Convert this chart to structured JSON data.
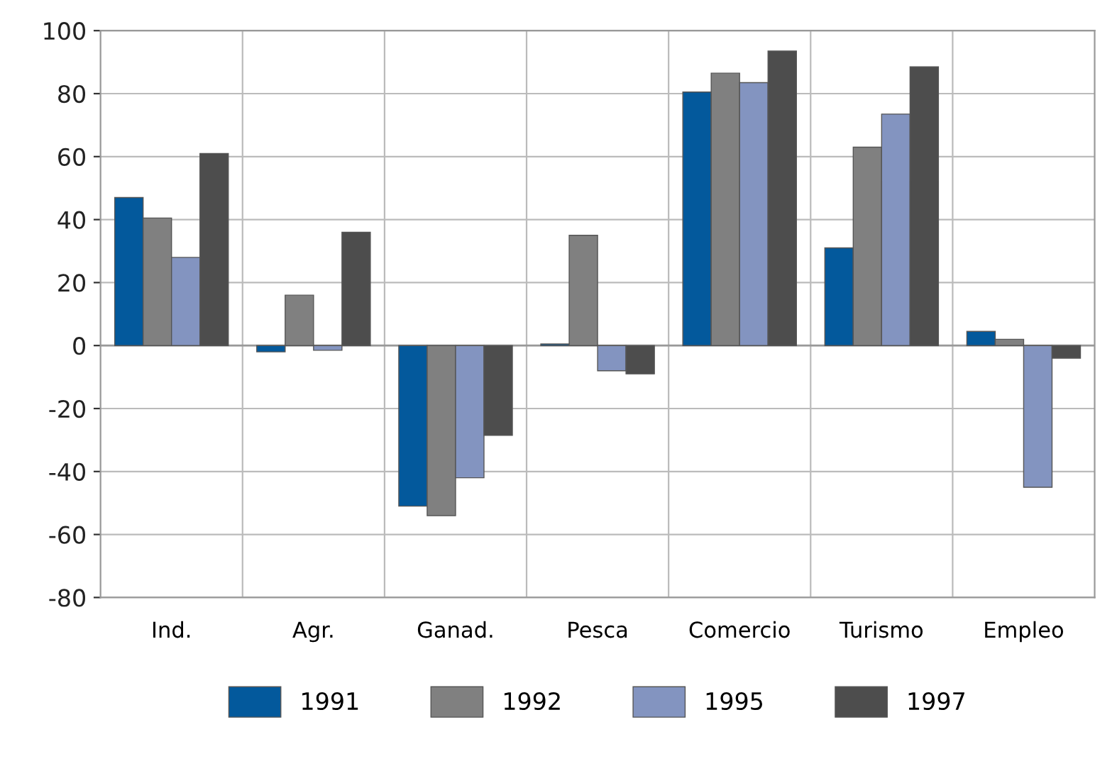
{
  "chart_data": {
    "type": "bar",
    "categories": [
      "Ind.",
      "Agr.",
      "Ganad.",
      "Pesca",
      "Comercio",
      "Turismo",
      "Empleo"
    ],
    "series": [
      {
        "name": "1991",
        "color": "#03599c",
        "values": [
          47,
          -2,
          -51,
          0.5,
          80.5,
          31,
          4.5
        ]
      },
      {
        "name": "1992",
        "color": "#808080",
        "values": [
          40.5,
          16,
          -54,
          35,
          86.5,
          63,
          2
        ]
      },
      {
        "name": "1995",
        "color": "#8394c0",
        "values": [
          28,
          -1.5,
          -42,
          -8,
          83.5,
          73.5,
          -45
        ]
      },
      {
        "name": "1997",
        "color": "#4d4d4d",
        "values": [
          61,
          36,
          -28.5,
          -9,
          93.5,
          88.5,
          -4
        ]
      }
    ],
    "ylim": [
      -80,
      100
    ],
    "yticks": [
      -80,
      -60,
      -40,
      -20,
      0,
      20,
      40,
      60,
      80,
      100
    ],
    "grid": true,
    "legend": "bottom"
  }
}
